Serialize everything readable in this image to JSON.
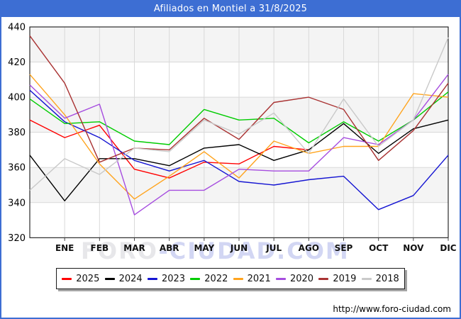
{
  "title": "Afiliados en Montiel a 31/8/2025",
  "footer": {
    "url": "http://www.foro-ciudad.com"
  },
  "watermark": {
    "part1": "FORO",
    "part2": "-CIUDAD.COM"
  },
  "colors": {
    "frame_blue": "#3d6ed3",
    "grid": "#d9d9d9",
    "band_gray": "#f4f4f4",
    "plot_border": "#000000"
  },
  "chart_data": {
    "type": "line",
    "title": "Afiliados en Montiel a 31/8/2025",
    "xlabel": "",
    "ylabel": "",
    "ylim": [
      320,
      440
    ],
    "ytick_step": 20,
    "grid": true,
    "legend_position": "bottom",
    "x_categories": [
      "ENE",
      "FEB",
      "MAR",
      "ABR",
      "MAY",
      "JUN",
      "JUL",
      "AGO",
      "SEP",
      "OCT",
      "NOV",
      "DIC"
    ],
    "note": "Each series starts on the left axis with a value before ENE; 2025 data ends in AGO (31/8/2025).",
    "series": [
      {
        "name": "2025",
        "color": "#ff0000",
        "start": 387,
        "values": [
          377,
          384,
          359,
          354,
          363,
          362,
          372,
          370
        ]
      },
      {
        "name": "2024",
        "color": "#000000",
        "start": 367,
        "values": [
          341,
          365,
          365,
          361,
          371,
          373,
          364,
          370,
          385,
          368,
          382,
          387
        ]
      },
      {
        "name": "2023",
        "color": "#1414d2",
        "start": 404,
        "values": [
          386,
          377,
          364,
          358,
          364,
          352,
          350,
          353,
          355,
          336,
          344,
          367
        ]
      },
      {
        "name": "2022",
        "color": "#00cc00",
        "start": 399,
        "values": [
          385,
          386,
          375,
          373,
          393,
          387,
          388,
          374,
          386,
          375,
          387,
          403
        ]
      },
      {
        "name": "2021",
        "color": "#ffa41e",
        "start": 413,
        "values": [
          390,
          362,
          342,
          355,
          369,
          354,
          375,
          368,
          372,
          372,
          402,
          400
        ]
      },
      {
        "name": "2020",
        "color": "#a64ddf",
        "start": 407,
        "values": [
          388,
          396,
          333,
          347,
          347,
          359,
          358,
          358,
          377,
          373,
          387,
          413
        ]
      },
      {
        "name": "2019",
        "color": "#a93232",
        "start": 435,
        "values": [
          408,
          363,
          371,
          370,
          388,
          376,
          397,
          400,
          393,
          364,
          381,
          408
        ]
      },
      {
        "name": "2018",
        "color": "#c9c9c9",
        "start": 347,
        "values": [
          365,
          356,
          371,
          369,
          387,
          379,
          391,
          368,
          399,
          372,
          387,
          434
        ]
      }
    ]
  }
}
